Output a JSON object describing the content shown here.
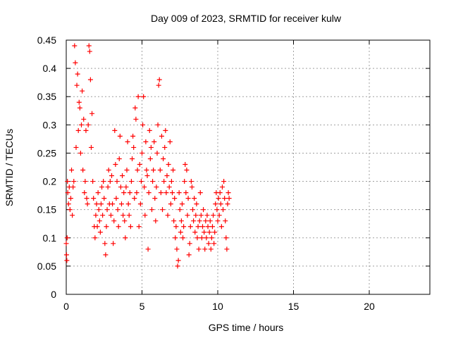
{
  "chart_data": {
    "type": "scatter",
    "title": "Day 009 of 2023, SRMTID for receiver kulw",
    "xlabel": "GPS time / hours",
    "ylabel": "SRMTID / TECUs",
    "xlim": [
      0,
      24
    ],
    "ylim": [
      0,
      0.45
    ],
    "x_ticks": [
      0,
      5,
      10,
      15,
      20
    ],
    "x_tick_labels": [
      "0",
      "5",
      "10",
      "15",
      "20"
    ],
    "y_ticks": [
      0,
      0.05,
      0.1,
      0.15,
      0.2,
      0.25,
      0.3,
      0.35,
      0.4,
      0.45
    ],
    "y_tick_labels": [
      "0",
      "0.05",
      "0.1",
      "0.15",
      "0.2",
      "0.25",
      "0.3",
      "0.35",
      "0.4",
      "0.45"
    ],
    "grid": true,
    "marker": "+",
    "series": [
      {
        "name": "SRMTID",
        "color": "#ff0000",
        "points": [
          [
            0.0,
            0.09
          ],
          [
            0.02,
            0.07
          ],
          [
            0.04,
            0.06
          ],
          [
            0.06,
            0.1
          ],
          [
            0.08,
            0.2
          ],
          [
            0.1,
            0.18
          ],
          [
            0.15,
            0.16
          ],
          [
            0.2,
            0.19
          ],
          [
            0.25,
            0.15
          ],
          [
            0.3,
            0.17
          ],
          [
            0.35,
            0.22
          ],
          [
            0.4,
            0.14
          ],
          [
            0.45,
            0.19
          ],
          [
            0.5,
            0.2
          ],
          [
            0.55,
            0.44
          ],
          [
            0.6,
            0.41
          ],
          [
            0.65,
            0.26
          ],
          [
            0.7,
            0.37
          ],
          [
            0.75,
            0.39
          ],
          [
            0.8,
            0.29
          ],
          [
            0.85,
            0.34
          ],
          [
            0.9,
            0.33
          ],
          [
            0.95,
            0.25
          ],
          [
            1.0,
            0.3
          ],
          [
            1.05,
            0.36
          ],
          [
            1.1,
            0.22
          ],
          [
            1.15,
            0.31
          ],
          [
            1.2,
            0.18
          ],
          [
            1.25,
            0.2
          ],
          [
            1.3,
            0.29
          ],
          [
            1.35,
            0.17
          ],
          [
            1.4,
            0.16
          ],
          [
            1.45,
            0.3
          ],
          [
            1.5,
            0.44
          ],
          [
            1.55,
            0.43
          ],
          [
            1.6,
            0.38
          ],
          [
            1.65,
            0.26
          ],
          [
            1.7,
            0.32
          ],
          [
            1.75,
            0.2
          ],
          [
            1.8,
            0.17
          ],
          [
            1.85,
            0.12
          ],
          [
            1.9,
            0.1
          ],
          [
            1.95,
            0.14
          ],
          [
            2.0,
            0.16
          ],
          [
            2.05,
            0.12
          ],
          [
            2.1,
            0.18
          ],
          [
            2.15,
            0.15
          ],
          [
            2.2,
            0.13
          ],
          [
            2.25,
            0.11
          ],
          [
            2.3,
            0.16
          ],
          [
            2.35,
            0.19
          ],
          [
            2.4,
            0.14
          ],
          [
            2.45,
            0.2
          ],
          [
            2.5,
            0.17
          ],
          [
            2.55,
            0.09
          ],
          [
            2.6,
            0.07
          ],
          [
            2.65,
            0.12
          ],
          [
            2.7,
            0.15
          ],
          [
            2.75,
            0.19
          ],
          [
            2.8,
            0.22
          ],
          [
            2.85,
            0.16
          ],
          [
            2.9,
            0.2
          ],
          [
            2.95,
            0.14
          ],
          [
            3.0,
            0.21
          ],
          [
            3.05,
            0.16
          ],
          [
            3.1,
            0.09
          ],
          [
            3.15,
            0.13
          ],
          [
            3.2,
            0.29
          ],
          [
            3.25,
            0.23
          ],
          [
            3.3,
            0.17
          ],
          [
            3.35,
            0.2
          ],
          [
            3.4,
            0.15
          ],
          [
            3.45,
            0.12
          ],
          [
            3.5,
            0.24
          ],
          [
            3.55,
            0.28
          ],
          [
            3.6,
            0.19
          ],
          [
            3.65,
            0.16
          ],
          [
            3.7,
            0.21
          ],
          [
            3.75,
            0.14
          ],
          [
            3.8,
            0.18
          ],
          [
            3.85,
            0.13
          ],
          [
            3.9,
            0.1
          ],
          [
            3.95,
            0.19
          ],
          [
            4.0,
            0.22
          ],
          [
            4.05,
            0.27
          ],
          [
            4.1,
            0.16
          ],
          [
            4.15,
            0.14
          ],
          [
            4.2,
            0.18
          ],
          [
            4.25,
            0.12
          ],
          [
            4.3,
            0.2
          ],
          [
            4.35,
            0.24
          ],
          [
            4.4,
            0.28
          ],
          [
            4.45,
            0.26
          ],
          [
            4.5,
            0.17
          ],
          [
            4.55,
            0.33
          ],
          [
            4.6,
            0.31
          ],
          [
            4.65,
            0.18
          ],
          [
            4.7,
            0.22
          ],
          [
            4.75,
            0.35
          ],
          [
            4.8,
            0.12
          ],
          [
            4.85,
            0.23
          ],
          [
            4.9,
            0.16
          ],
          [
            4.95,
            0.2
          ],
          [
            5.0,
            0.25
          ],
          [
            5.05,
            0.3
          ],
          [
            5.1,
            0.35
          ],
          [
            5.15,
            0.19
          ],
          [
            5.2,
            0.14
          ],
          [
            5.25,
            0.27
          ],
          [
            5.3,
            0.22
          ],
          [
            5.35,
            0.21
          ],
          [
            5.4,
            0.08
          ],
          [
            5.45,
            0.18
          ],
          [
            5.5,
            0.29
          ],
          [
            5.55,
            0.24
          ],
          [
            5.6,
            0.26
          ],
          [
            5.65,
            0.15
          ],
          [
            5.7,
            0.2
          ],
          [
            5.75,
            0.22
          ],
          [
            5.8,
            0.27
          ],
          [
            5.85,
            0.17
          ],
          [
            5.9,
            0.13
          ],
          [
            5.95,
            0.19
          ],
          [
            6.0,
            0.25
          ],
          [
            6.05,
            0.3
          ],
          [
            6.1,
            0.37
          ],
          [
            6.15,
            0.38
          ],
          [
            6.2,
            0.22
          ],
          [
            6.25,
            0.18
          ],
          [
            6.3,
            0.28
          ],
          [
            6.35,
            0.15
          ],
          [
            6.4,
            0.24
          ],
          [
            6.45,
            0.2
          ],
          [
            6.5,
            0.26
          ],
          [
            6.55,
            0.29
          ],
          [
            6.6,
            0.18
          ],
          [
            6.65,
            0.21
          ],
          [
            6.7,
            0.14
          ],
          [
            6.75,
            0.23
          ],
          [
            6.8,
            0.19
          ],
          [
            6.85,
            0.27
          ],
          [
            6.9,
            0.16
          ],
          [
            6.95,
            0.2
          ],
          [
            7.0,
            0.18
          ],
          [
            7.05,
            0.22
          ],
          [
            7.1,
            0.13
          ],
          [
            7.15,
            0.17
          ],
          [
            7.2,
            0.1
          ],
          [
            7.25,
            0.12
          ],
          [
            7.3,
            0.08
          ],
          [
            7.35,
            0.05
          ],
          [
            7.4,
            0.06
          ],
          [
            7.45,
            0.18
          ],
          [
            7.5,
            0.15
          ],
          [
            7.55,
            0.11
          ],
          [
            7.6,
            0.13
          ],
          [
            7.65,
            0.16
          ],
          [
            7.7,
            0.1
          ],
          [
            7.75,
            0.12
          ],
          [
            7.8,
            0.2
          ],
          [
            7.85,
            0.23
          ],
          [
            7.9,
            0.18
          ],
          [
            7.95,
            0.22
          ],
          [
            8.0,
            0.14
          ],
          [
            8.05,
            0.17
          ],
          [
            8.1,
            0.07
          ],
          [
            8.15,
            0.09
          ],
          [
            8.2,
            0.12
          ],
          [
            8.25,
            0.2
          ],
          [
            8.3,
            0.19
          ],
          [
            8.35,
            0.15
          ],
          [
            8.4,
            0.13
          ],
          [
            8.45,
            0.17
          ],
          [
            8.5,
            0.11
          ],
          [
            8.55,
            0.14
          ],
          [
            8.6,
            0.16
          ],
          [
            8.65,
            0.1
          ],
          [
            8.7,
            0.12
          ],
          [
            8.75,
            0.08
          ],
          [
            8.8,
            0.13
          ],
          [
            8.85,
            0.18
          ],
          [
            8.9,
            0.14
          ],
          [
            8.95,
            0.1
          ],
          [
            9.0,
            0.12
          ],
          [
            9.05,
            0.15
          ],
          [
            9.1,
            0.11
          ],
          [
            9.15,
            0.08
          ],
          [
            9.2,
            0.13
          ],
          [
            9.25,
            0.1
          ],
          [
            9.3,
            0.14
          ],
          [
            9.35,
            0.12
          ],
          [
            9.4,
            0.09
          ],
          [
            9.45,
            0.11
          ],
          [
            9.5,
            0.13
          ],
          [
            9.55,
            0.08
          ],
          [
            9.6,
            0.1
          ],
          [
            9.65,
            0.12
          ],
          [
            9.7,
            0.14
          ],
          [
            9.75,
            0.09
          ],
          [
            9.8,
            0.11
          ],
          [
            9.85,
            0.16
          ],
          [
            9.9,
            0.18
          ],
          [
            9.95,
            0.15
          ],
          [
            10.0,
            0.13
          ],
          [
            10.05,
            0.17
          ],
          [
            10.1,
            0.14
          ],
          [
            10.15,
            0.18
          ],
          [
            10.2,
            0.16
          ],
          [
            10.25,
            0.12
          ],
          [
            10.3,
            0.19
          ],
          [
            10.35,
            0.15
          ],
          [
            10.4,
            0.2
          ],
          [
            10.45,
            0.17
          ],
          [
            10.5,
            0.13
          ],
          [
            10.55,
            0.1
          ],
          [
            10.6,
            0.08
          ],
          [
            10.65,
            0.16
          ],
          [
            10.7,
            0.18
          ],
          [
            10.75,
            0.17
          ]
        ]
      }
    ]
  }
}
